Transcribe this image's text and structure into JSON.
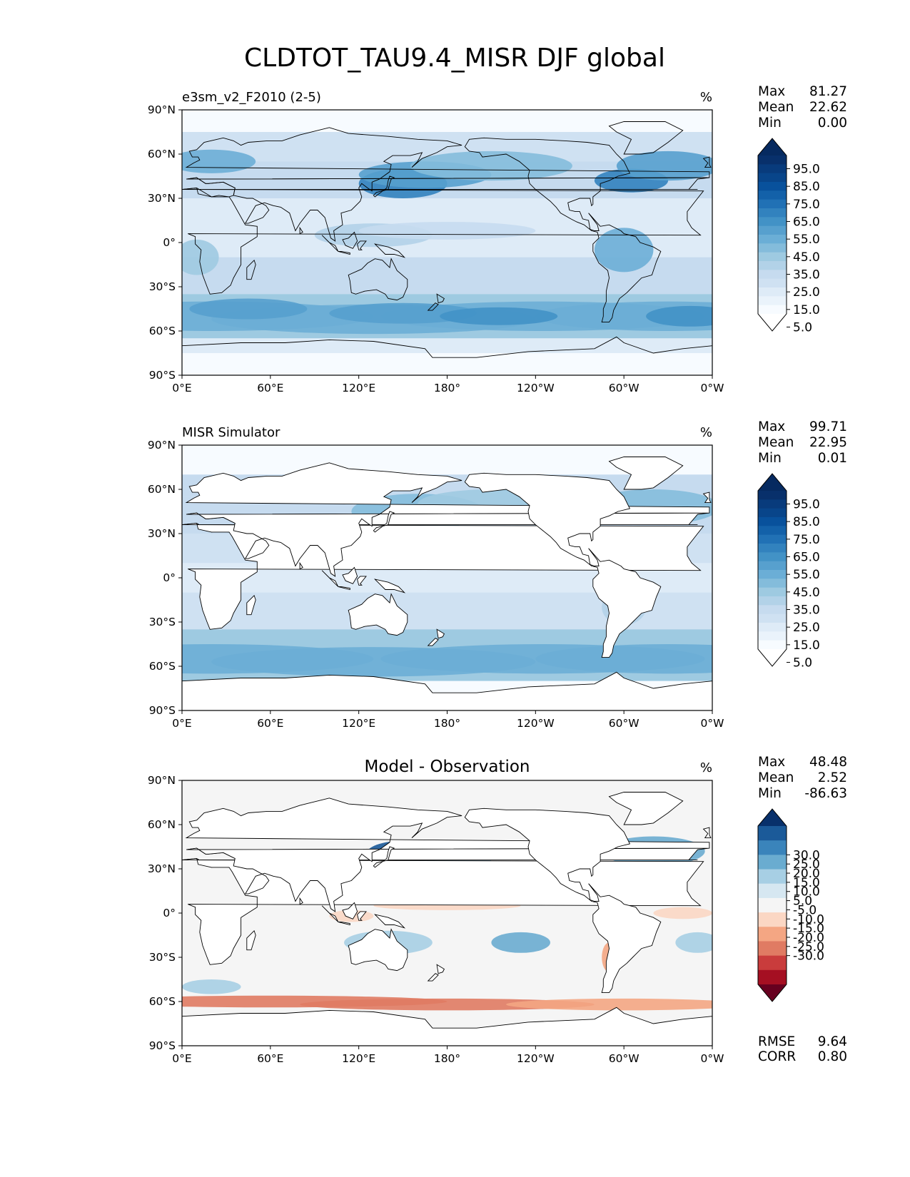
{
  "figure_title": "CLDTOT_TAU9.4_MISR DJF global",
  "unit_label": "%",
  "lat_ticks": [
    "90°N",
    "60°N",
    "30°N",
    "0°",
    "30°S",
    "60°S",
    "90°S"
  ],
  "lon_ticks": [
    "0°E",
    "60°E",
    "120°E",
    "180°",
    "120°W",
    "60°W",
    "0°W"
  ],
  "chart_data": [
    {
      "type": "heatmap",
      "panel": "test",
      "title": "e3sm_v2_F2010 (2-5)",
      "units": "%",
      "stats": [
        {
          "label": "Max",
          "value": "81.27"
        },
        {
          "label": "Mean",
          "value": "22.62"
        },
        {
          "label": "Min",
          "value": "0.00"
        }
      ],
      "colorbar": {
        "labels": [
          "95.0",
          "85.0",
          "75.0",
          "65.0",
          "55.0",
          "45.0",
          "35.0",
          "25.0",
          "15.0",
          "5.0"
        ],
        "levels": [
          0,
          5,
          10,
          15,
          20,
          25,
          30,
          35,
          40,
          45,
          50,
          55,
          60,
          65,
          70,
          75,
          80,
          85,
          90,
          95,
          100
        ],
        "colors": [
          "#ffffff",
          "#f7fbff",
          "#eaf3fb",
          "#deebf7",
          "#cfe1f2",
          "#c6dbef",
          "#b2d2e8",
          "#9ecae1",
          "#84bcdb",
          "#6baed6",
          "#57a0ce",
          "#4292c6",
          "#3282be",
          "#2171b5",
          "#1361a9",
          "#08519c",
          "#08458a",
          "#083b7c",
          "#08306b",
          "#062a60"
        ]
      },
      "xlim": [
        0,
        360
      ],
      "ylim": [
        -90,
        90
      ]
    },
    {
      "type": "heatmap",
      "panel": "reference",
      "title": "MISR Simulator",
      "units": "%",
      "stats": [
        {
          "label": "Max",
          "value": "99.71"
        },
        {
          "label": "Mean",
          "value": "22.95"
        },
        {
          "label": "Min",
          "value": "0.01"
        }
      ],
      "colorbar": {
        "labels": [
          "95.0",
          "85.0",
          "75.0",
          "65.0",
          "55.0",
          "45.0",
          "35.0",
          "25.0",
          "15.0",
          "5.0"
        ],
        "levels": [
          0,
          5,
          10,
          15,
          20,
          25,
          30,
          35,
          40,
          45,
          50,
          55,
          60,
          65,
          70,
          75,
          80,
          85,
          90,
          95,
          100
        ],
        "colors": [
          "#ffffff",
          "#f7fbff",
          "#eaf3fb",
          "#deebf7",
          "#cfe1f2",
          "#c6dbef",
          "#b2d2e8",
          "#9ecae1",
          "#84bcdb",
          "#6baed6",
          "#57a0ce",
          "#4292c6",
          "#3282be",
          "#2171b5",
          "#1361a9",
          "#08519c",
          "#08458a",
          "#083b7c",
          "#08306b",
          "#062a60"
        ]
      },
      "xlim": [
        0,
        360
      ],
      "ylim": [
        -90,
        90
      ]
    },
    {
      "type": "heatmap",
      "panel": "difference",
      "title": "Model - Observation",
      "units": "%",
      "stats": [
        {
          "label": "Max",
          "value": "48.48"
        },
        {
          "label": "Mean",
          "value": "2.52"
        },
        {
          "label": "Min",
          "value": "-86.63"
        }
      ],
      "colorbar": {
        "labels": [
          "30.0",
          "25.0",
          "20.0",
          "15.0",
          "10.0",
          "5.0",
          "-5.0",
          "-10.0",
          "-15.0",
          "-20.0",
          "-25.0",
          "-30.0"
        ],
        "levels": [
          -30,
          -25,
          -20,
          -15,
          -10,
          -5,
          5,
          10,
          15,
          20,
          25,
          30
        ],
        "colors": [
          "#67001f",
          "#a50f22",
          "#c93c3c",
          "#e07b63",
          "#f4a683",
          "#fbd7c4",
          "#f5f5f5",
          "#d6e7f1",
          "#a7cfe4",
          "#6aacd0",
          "#3a84bb",
          "#1b5a99",
          "#08306b"
        ]
      },
      "metrics": [
        {
          "label": "RMSE",
          "value": "9.64"
        },
        {
          "label": "CORR",
          "value": "0.80"
        }
      ],
      "xlim": [
        0,
        360
      ],
      "ylim": [
        -90,
        90
      ]
    }
  ]
}
